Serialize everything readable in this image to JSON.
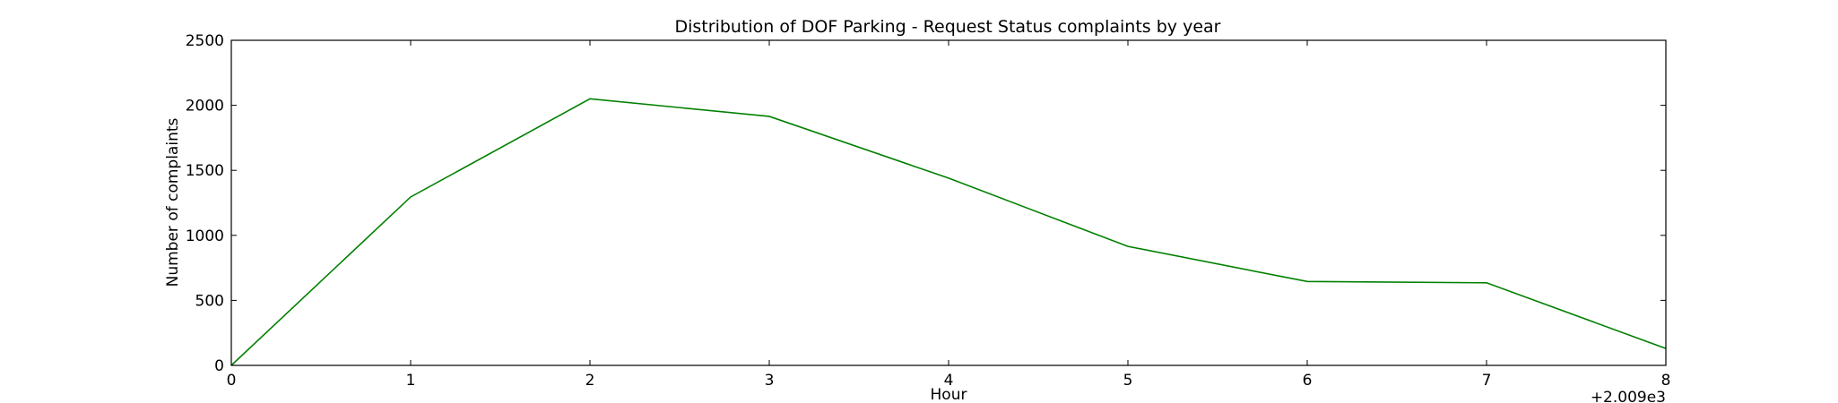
{
  "chart_data": {
    "type": "line",
    "title": "Distribution of  DOF Parking - Request Status complaints by year",
    "xlabel": "Hour",
    "ylabel": "Number of complaints",
    "x_offset_label": "+2.009e3",
    "x": [
      0,
      1,
      2,
      3,
      4,
      5,
      6,
      7,
      8
    ],
    "series": [
      {
        "name": "complaints",
        "color": "#008000",
        "values": [
          0,
          1295,
          2050,
          1915,
          1440,
          915,
          645,
          635,
          130
        ]
      }
    ],
    "xlim": [
      0,
      8
    ],
    "ylim": [
      0,
      2500
    ],
    "xticks": [
      0,
      1,
      2,
      3,
      4,
      5,
      6,
      7,
      8
    ],
    "yticks": [
      0,
      500,
      1000,
      1500,
      2000,
      2500
    ],
    "grid": false
  }
}
